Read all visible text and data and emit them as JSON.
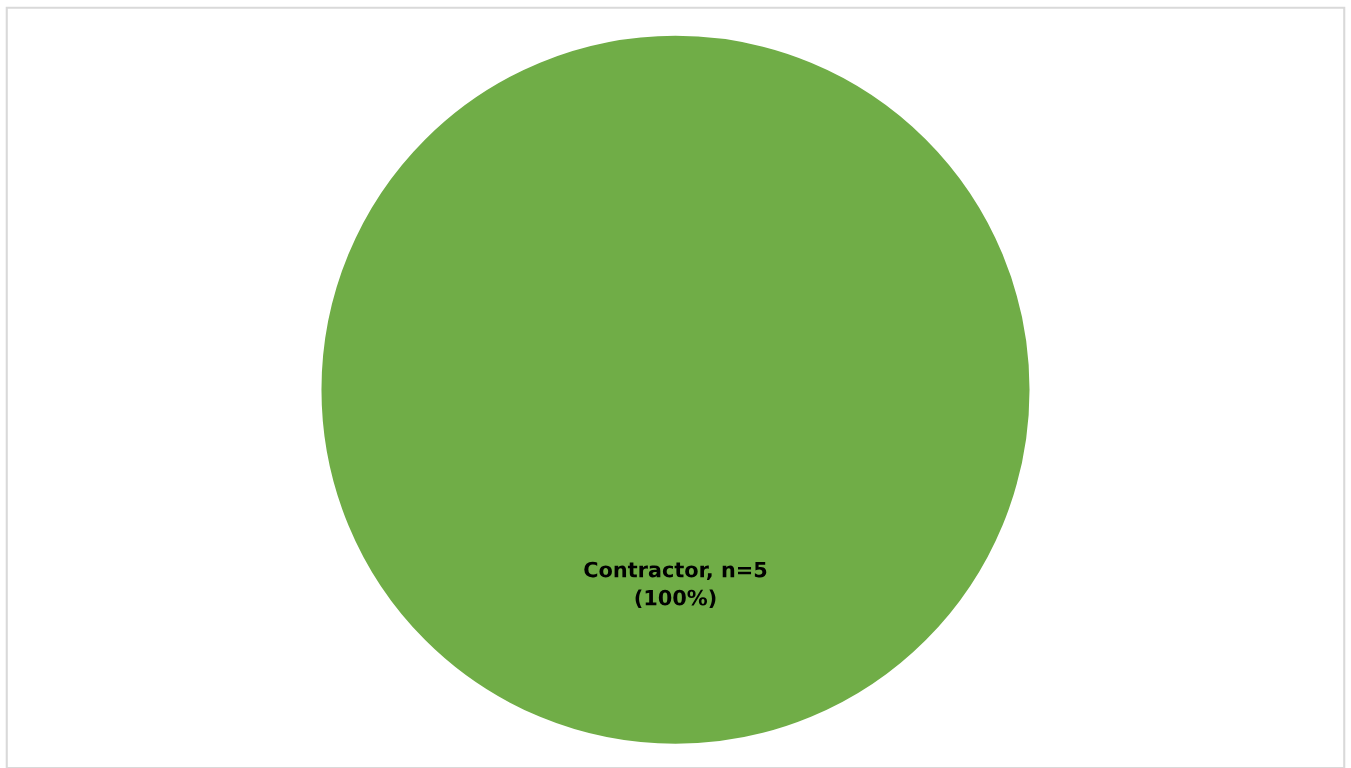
{
  "chart_data": {
    "type": "pie",
    "categories": [
      "Contractor, n=5"
    ],
    "values": [
      100
    ],
    "colors": [
      "#70ad47"
    ],
    "value_labels": [
      "(100%)"
    ]
  }
}
